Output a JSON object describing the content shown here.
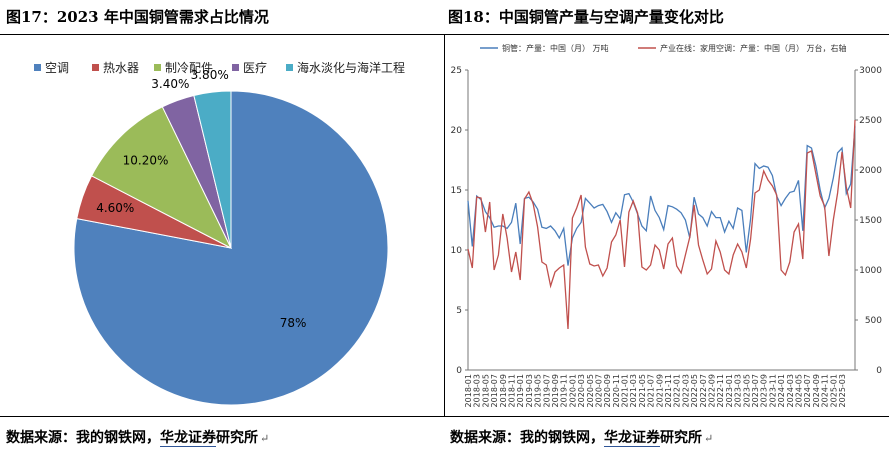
{
  "left": {
    "title": "图17：2023 年中国铜管需求占比情况",
    "source_prefix": "数据来源：我的钢铁网，",
    "source_highlight": "华龙证券",
    "source_suffix": "研究所",
    "return_mark": "↵"
  },
  "right": {
    "title": "图18：中国铜管产量与空调产量变化对比",
    "source_prefix": "数据来源：我的钢铁网，",
    "source_highlight": "华龙证券",
    "source_suffix": "研究所",
    "return_mark": "↵"
  },
  "chart_data": [
    {
      "type": "pie",
      "title": "图17：2023 年中国铜管需求占比情况",
      "legend_position": "top",
      "slices": [
        {
          "name": "空调",
          "value": 78,
          "label": "78%",
          "color": "#4f81bd"
        },
        {
          "name": "热水器",
          "value": 4.6,
          "label": "4.60%",
          "color": "#c0504d"
        },
        {
          "name": "制冷配件",
          "value": 10.2,
          "label": "10.20%",
          "color": "#9bbb59"
        },
        {
          "name": "医疗",
          "value": 3.4,
          "label": "3.40%",
          "color": "#8064a2"
        },
        {
          "name": "海水淡化与海洋工程",
          "value": 3.8,
          "label": "3.80%",
          "color": "#4bacc6"
        }
      ]
    },
    {
      "type": "line",
      "title": "图18：中国铜管产量与空调产量变化对比",
      "legend_position": "top",
      "grid": false,
      "ylim_left": [
        0,
        25
      ],
      "ylim_right": [
        0,
        3000
      ],
      "yticks_left": [
        "0",
        "5",
        "10",
        "15",
        "20",
        "25"
      ],
      "yticks_right": [
        "0",
        "500",
        "1000",
        "1500",
        "2000",
        "2500",
        "3000"
      ],
      "x_labels": [
        "2018-01",
        "2018-03",
        "2018-05",
        "2018-07",
        "2018-09",
        "2018-11",
        "2019-01",
        "2019-03",
        "2019-05",
        "2019-07",
        "2019-09",
        "2019-11",
        "2020-01",
        "2020-03",
        "2020-05",
        "2020-07",
        "2020-09",
        "2020-11",
        "2021-01",
        "2021-03",
        "2021-05",
        "2021-07",
        "2021-09",
        "2021-11",
        "2022-01",
        "2022-03",
        "2022-05",
        "2022-07",
        "2022-09",
        "2022-11",
        "2023-01",
        "2023-03",
        "2023-05",
        "2023-07",
        "2023-09",
        "2023-11",
        "2024-01",
        "2024-03",
        "2024-05",
        "2024-07",
        "2024-09",
        "2024-11",
        "2025-01",
        "2025-03"
      ],
      "series": [
        {
          "name": "铜管：产量：中国（月）  万吨",
          "axis": "left",
          "color": "#4a7ebb",
          "values": [
            14.1,
            10.3,
            14.5,
            14.2,
            13.2,
            12.7,
            11.9,
            12.0,
            12.0,
            11.8,
            12.3,
            13.9,
            10.5,
            14.3,
            14.4,
            14.0,
            13.4,
            11.9,
            11.8,
            12.0,
            11.6,
            11.0,
            11.8,
            8.7,
            11.0,
            11.8,
            12.3,
            14.3,
            13.9,
            13.5,
            13.7,
            13.8,
            13.2,
            12.3,
            13.1,
            12.6,
            14.6,
            14.7,
            14.0,
            13.0,
            12.0,
            11.6,
            14.5,
            13.3,
            12.7,
            11.7,
            13.7,
            13.6,
            13.4,
            13.1,
            12.5,
            11.0,
            14.4,
            13.0,
            12.7,
            12.0,
            13.2,
            12.7,
            12.7,
            11.5,
            12.4,
            11.8,
            13.5,
            13.3,
            9.8,
            12.6,
            17.2,
            16.8,
            17.0,
            16.9,
            16.2,
            14.5,
            13.7,
            14.3,
            14.8,
            14.9,
            15.8,
            11.6,
            18.7,
            18.5,
            17.0,
            15.0,
            13.5,
            14.3,
            16.0,
            18.1,
            18.5,
            14.7,
            15.5,
            20.3
          ]
        },
        {
          "name": "产业在线：家用空调：产量：中国（月）  万台，右轴",
          "axis": "right",
          "color": "#c0504d",
          "values": [
            1210,
            1020,
            1730,
            1720,
            1380,
            1680,
            1000,
            1150,
            1560,
            1320,
            980,
            1180,
            900,
            1710,
            1780,
            1660,
            1430,
            1080,
            1050,
            840,
            980,
            1020,
            1050,
            410,
            1520,
            1620,
            1750,
            1230,
            1060,
            1040,
            1050,
            940,
            1020,
            1280,
            1350,
            1500,
            1030,
            1580,
            1690,
            1570,
            1030,
            1000,
            1050,
            1250,
            1200,
            1010,
            1260,
            1320,
            1040,
            970,
            1150,
            1330,
            1650,
            1250,
            1100,
            960,
            1010,
            1290,
            1180,
            1000,
            960,
            1150,
            1260,
            1180,
            1020,
            1310,
            1770,
            1800,
            1990,
            1900,
            1840,
            1750,
            1000,
            950,
            1080,
            1380,
            1460,
            1110,
            2170,
            2190,
            1960,
            1740,
            1640,
            1140,
            1500,
            1770,
            2180,
            1830,
            1620,
            2500
          ]
        }
      ]
    }
  ]
}
